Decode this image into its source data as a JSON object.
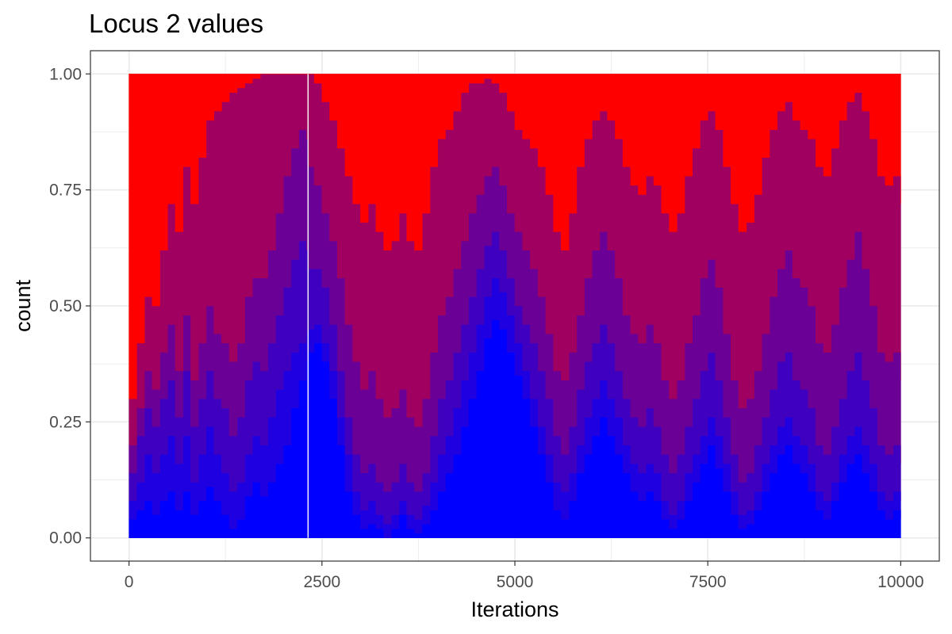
{
  "chart_data": {
    "type": "area",
    "title": "Locus 2 values",
    "xlabel": "Iterations",
    "ylabel": "count",
    "xlim": [
      -500,
      10500
    ],
    "ylim": [
      -0.05,
      1.05
    ],
    "x_ticks": [
      0,
      2500,
      5000,
      7500,
      10000
    ],
    "x_tick_labels": [
      "0",
      "2500",
      "5000",
      "7500",
      "10000"
    ],
    "y_ticks": [
      0,
      0.25,
      0.5,
      0.75,
      1
    ],
    "y_tick_labels": [
      "0.00",
      "0.25",
      "0.50",
      "0.75",
      "1.00"
    ],
    "stacked": true,
    "position": "fill",
    "grid": true,
    "legend": "none",
    "gap_at_x": 2320,
    "colors": {
      "low": "#0000ff",
      "high": "#ff0000",
      "panel_border": "#333333",
      "grid": "#ebebeb"
    },
    "x": [
      0,
      100,
      200,
      300,
      400,
      500,
      600,
      700,
      800,
      900,
      1000,
      1100,
      1200,
      1300,
      1400,
      1500,
      1600,
      1700,
      1800,
      1900,
      2000,
      2100,
      2200,
      2300,
      2320,
      2400,
      2500,
      2600,
      2700,
      2800,
      2900,
      3000,
      3100,
      3200,
      3300,
      3400,
      3500,
      3600,
      3700,
      3800,
      3900,
      4000,
      4100,
      4200,
      4300,
      4400,
      4500,
      4600,
      4700,
      4800,
      4900,
      5000,
      5100,
      5200,
      5300,
      5400,
      5500,
      5600,
      5700,
      5800,
      5900,
      6000,
      6100,
      6200,
      6300,
      6400,
      6500,
      6600,
      6700,
      6800,
      6900,
      7000,
      7100,
      7200,
      7300,
      7400,
      7500,
      7600,
      7700,
      7800,
      7900,
      8000,
      8100,
      8200,
      8300,
      8400,
      8500,
      8600,
      8700,
      8800,
      8900,
      9000,
      9100,
      9200,
      9300,
      9400,
      9500,
      9600,
      9700,
      9800,
      9900,
      10000
    ],
    "boundaries": [
      [
        0.04,
        0.06,
        0.08,
        0.05,
        0.08,
        0.1,
        0.06,
        0.1,
        0.05,
        0.08,
        0.11,
        0.08,
        0.05,
        0.02,
        0.04,
        0.09,
        0.12,
        0.09,
        0.12,
        0.16,
        0.2,
        0.28,
        0.34,
        0.38,
        0.4,
        0.42,
        0.38,
        0.3,
        0.2,
        0.1,
        0.05,
        0.02,
        0.03,
        0.02,
        0.0,
        0.02,
        0.05,
        0.02,
        0.01,
        0.03,
        0.06,
        0.1,
        0.14,
        0.18,
        0.24,
        0.3,
        0.36,
        0.43,
        0.47,
        0.45,
        0.4,
        0.35,
        0.3,
        0.24,
        0.18,
        0.12,
        0.06,
        0.04,
        0.08,
        0.14,
        0.18,
        0.22,
        0.26,
        0.22,
        0.18,
        0.14,
        0.1,
        0.08,
        0.1,
        0.08,
        0.04,
        0.02,
        0.04,
        0.08,
        0.12,
        0.16,
        0.2,
        0.15,
        0.1,
        0.05,
        0.02,
        0.03,
        0.06,
        0.1,
        0.14,
        0.18,
        0.2,
        0.16,
        0.14,
        0.1,
        0.06,
        0.04,
        0.08,
        0.12,
        0.16,
        0.18,
        0.14,
        0.1,
        0.06,
        0.04,
        0.06,
        0.04
      ],
      [
        0.08,
        0.12,
        0.18,
        0.14,
        0.18,
        0.22,
        0.16,
        0.22,
        0.12,
        0.18,
        0.24,
        0.18,
        0.14,
        0.1,
        0.12,
        0.18,
        0.22,
        0.2,
        0.26,
        0.32,
        0.36,
        0.4,
        0.42,
        0.44,
        0.45,
        0.46,
        0.42,
        0.36,
        0.26,
        0.18,
        0.1,
        0.06,
        0.08,
        0.05,
        0.03,
        0.05,
        0.08,
        0.05,
        0.04,
        0.07,
        0.12,
        0.18,
        0.22,
        0.28,
        0.34,
        0.4,
        0.46,
        0.52,
        0.56,
        0.53,
        0.48,
        0.42,
        0.36,
        0.3,
        0.24,
        0.18,
        0.12,
        0.1,
        0.14,
        0.2,
        0.26,
        0.3,
        0.34,
        0.3,
        0.26,
        0.2,
        0.16,
        0.14,
        0.16,
        0.14,
        0.08,
        0.05,
        0.08,
        0.14,
        0.18,
        0.22,
        0.26,
        0.22,
        0.16,
        0.1,
        0.05,
        0.06,
        0.1,
        0.16,
        0.2,
        0.24,
        0.26,
        0.22,
        0.2,
        0.16,
        0.1,
        0.08,
        0.12,
        0.18,
        0.22,
        0.24,
        0.2,
        0.16,
        0.1,
        0.08,
        0.1,
        0.08
      ],
      [
        0.14,
        0.22,
        0.28,
        0.24,
        0.3,
        0.34,
        0.26,
        0.36,
        0.24,
        0.3,
        0.36,
        0.3,
        0.28,
        0.22,
        0.26,
        0.34,
        0.38,
        0.36,
        0.42,
        0.48,
        0.54,
        0.6,
        0.64,
        0.62,
        0.58,
        0.58,
        0.54,
        0.46,
        0.36,
        0.26,
        0.18,
        0.14,
        0.16,
        0.12,
        0.1,
        0.12,
        0.16,
        0.12,
        0.1,
        0.14,
        0.22,
        0.3,
        0.34,
        0.4,
        0.46,
        0.52,
        0.58,
        0.63,
        0.66,
        0.62,
        0.56,
        0.5,
        0.46,
        0.42,
        0.36,
        0.3,
        0.22,
        0.18,
        0.24,
        0.32,
        0.38,
        0.42,
        0.46,
        0.42,
        0.36,
        0.3,
        0.26,
        0.24,
        0.28,
        0.24,
        0.18,
        0.14,
        0.18,
        0.24,
        0.3,
        0.36,
        0.4,
        0.34,
        0.26,
        0.18,
        0.12,
        0.14,
        0.2,
        0.26,
        0.32,
        0.38,
        0.4,
        0.34,
        0.32,
        0.28,
        0.2,
        0.18,
        0.24,
        0.3,
        0.36,
        0.4,
        0.34,
        0.28,
        0.2,
        0.18,
        0.2,
        0.16
      ],
      [
        0.2,
        0.28,
        0.36,
        0.32,
        0.4,
        0.46,
        0.36,
        0.48,
        0.34,
        0.42,
        0.5,
        0.44,
        0.42,
        0.38,
        0.42,
        0.52,
        0.56,
        0.56,
        0.62,
        0.7,
        0.78,
        0.84,
        0.88,
        0.86,
        0.8,
        0.76,
        0.7,
        0.64,
        0.56,
        0.46,
        0.38,
        0.32,
        0.36,
        0.3,
        0.26,
        0.28,
        0.32,
        0.26,
        0.24,
        0.3,
        0.4,
        0.48,
        0.52,
        0.58,
        0.64,
        0.7,
        0.74,
        0.78,
        0.8,
        0.76,
        0.7,
        0.66,
        0.62,
        0.58,
        0.52,
        0.44,
        0.36,
        0.34,
        0.4,
        0.48,
        0.56,
        0.62,
        0.66,
        0.62,
        0.56,
        0.48,
        0.44,
        0.42,
        0.46,
        0.42,
        0.34,
        0.3,
        0.34,
        0.42,
        0.48,
        0.56,
        0.6,
        0.54,
        0.44,
        0.34,
        0.28,
        0.3,
        0.36,
        0.44,
        0.52,
        0.58,
        0.62,
        0.56,
        0.54,
        0.5,
        0.42,
        0.4,
        0.46,
        0.54,
        0.6,
        0.66,
        0.58,
        0.5,
        0.4,
        0.38,
        0.4,
        0.34
      ],
      [
        0.3,
        0.42,
        0.52,
        0.5,
        0.62,
        0.72,
        0.66,
        0.8,
        0.72,
        0.82,
        0.9,
        0.92,
        0.94,
        0.96,
        0.97,
        0.98,
        0.99,
        1.0,
        1.0,
        1.0,
        1.0,
        1.0,
        1.0,
        1.0,
        1.0,
        0.98,
        0.94,
        0.9,
        0.84,
        0.78,
        0.72,
        0.68,
        0.72,
        0.66,
        0.62,
        0.64,
        0.7,
        0.64,
        0.62,
        0.7,
        0.8,
        0.86,
        0.88,
        0.92,
        0.96,
        0.98,
        0.98,
        0.99,
        0.98,
        0.96,
        0.92,
        0.88,
        0.86,
        0.84,
        0.8,
        0.74,
        0.66,
        0.62,
        0.7,
        0.8,
        0.86,
        0.9,
        0.92,
        0.9,
        0.86,
        0.8,
        0.76,
        0.74,
        0.78,
        0.76,
        0.7,
        0.66,
        0.7,
        0.78,
        0.84,
        0.9,
        0.92,
        0.88,
        0.8,
        0.72,
        0.66,
        0.68,
        0.74,
        0.82,
        0.88,
        0.92,
        0.94,
        0.9,
        0.88,
        0.86,
        0.8,
        0.78,
        0.84,
        0.9,
        0.94,
        0.96,
        0.92,
        0.86,
        0.78,
        0.76,
        0.78,
        0.72
      ]
    ],
    "layer_colors": [
      "#0000ff",
      "#1e00e1",
      "#4000c0",
      "#6a0096",
      "#a00060",
      "#ff0000"
    ]
  }
}
